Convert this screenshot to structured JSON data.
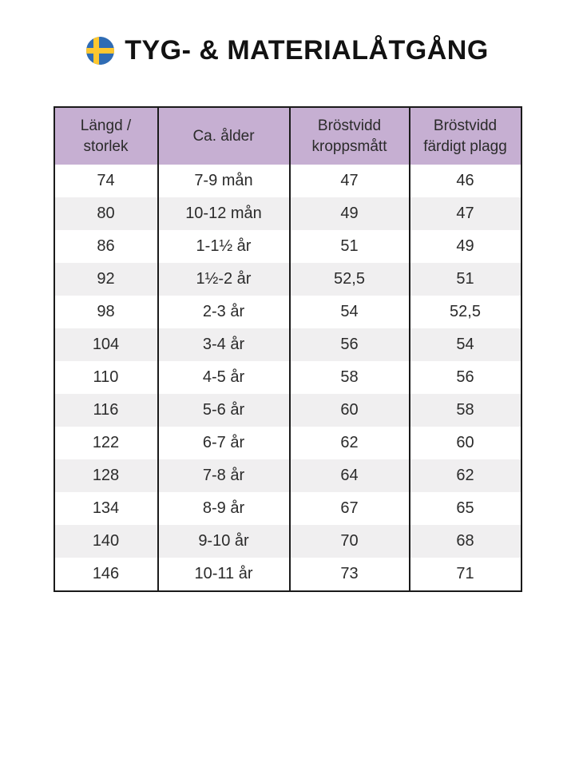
{
  "header": {
    "title": "TYG- & MATERIALÅTGÅNG",
    "flag_icon": "swedish-flag-icon"
  },
  "colors": {
    "header_bg": "#c6afd2",
    "row_stripe": "#f0eff0",
    "row_plain": "#ffffff",
    "table_border": "#1a1a1a",
    "text": "#2b2b2b",
    "title_text": "#121212",
    "flag_blue": "#2f6cb4",
    "flag_yellow": "#fdc72f"
  },
  "table": {
    "columns": [
      "Längd / storlek",
      "Ca. ålder",
      "Bröstvidd kroppsmått",
      "Bröstvidd färdigt plagg"
    ],
    "rows": [
      [
        "74",
        "7-9 mån",
        "47",
        "46"
      ],
      [
        "80",
        "10-12 mån",
        "49",
        "47"
      ],
      [
        "86",
        "1-1½ år",
        "51",
        "49"
      ],
      [
        "92",
        "1½-2 år",
        "52,5",
        "51"
      ],
      [
        "98",
        "2-3 år",
        "54",
        "52,5"
      ],
      [
        "104",
        "3-4 år",
        "56",
        "54"
      ],
      [
        "110",
        "4-5 år",
        "58",
        "56"
      ],
      [
        "116",
        "5-6 år",
        "60",
        "58"
      ],
      [
        "122",
        "6-7 år",
        "62",
        "60"
      ],
      [
        "128",
        "7-8 år",
        "64",
        "62"
      ],
      [
        "134",
        "8-9 år",
        "67",
        "65"
      ],
      [
        "140",
        "9-10 år",
        "70",
        "68"
      ],
      [
        "146",
        "10-11 år",
        "73",
        "71"
      ]
    ]
  }
}
